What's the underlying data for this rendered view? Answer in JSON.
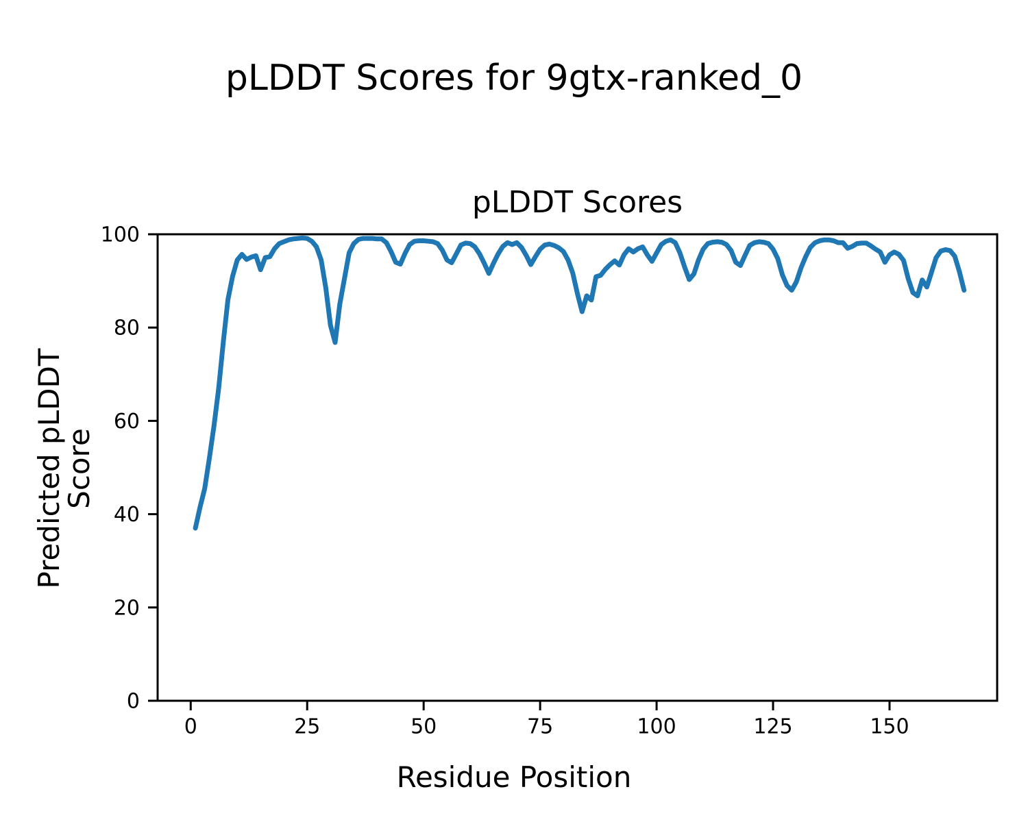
{
  "figure": {
    "title": "pLDDT Scores for 9gtx-ranked_0",
    "axes_title": "pLDDT Scores",
    "xlabel": "Residue Position",
    "ylabel": "Predicted pLDDT Score"
  },
  "colors": {
    "line": "#1f77b4",
    "axis": "#000000",
    "background": "#ffffff"
  },
  "chart_data": {
    "type": "line",
    "title": "pLDDT Scores",
    "suptitle": "pLDDT Scores for 9gtx-ranked_0",
    "xlabel": "Residue Position",
    "ylabel": "Predicted pLDDT Score",
    "xlim": [
      -7.1,
      173.1
    ],
    "ylim": [
      0,
      100
    ],
    "xticks": [
      0,
      25,
      50,
      75,
      100,
      125,
      150
    ],
    "yticks": [
      0,
      20,
      40,
      60,
      80,
      100
    ],
    "grid": false,
    "legend_position": "none",
    "series": [
      {
        "name": "pLDDT",
        "color": "#1f77b4",
        "x_start": 1,
        "x_step": 1,
        "values": [
          37.0,
          41.5,
          45.5,
          52.0,
          59.0,
          67.0,
          77.0,
          86.0,
          91.0,
          94.5,
          95.7,
          94.6,
          95.1,
          95.4,
          92.4,
          95.0,
          95.2,
          96.9,
          98.0,
          98.4,
          98.8,
          99.0,
          99.1,
          99.2,
          99.1,
          98.5,
          97.3,
          94.5,
          88.5,
          80.5,
          76.8,
          85.0,
          90.5,
          96.0,
          98.0,
          98.9,
          99.1,
          99.1,
          99.1,
          99.0,
          99.0,
          98.2,
          96.3,
          94.0,
          93.6,
          95.9,
          97.8,
          98.5,
          98.6,
          98.6,
          98.5,
          98.4,
          98.0,
          96.6,
          94.5,
          93.9,
          95.8,
          97.7,
          98.1,
          98.0,
          97.3,
          95.8,
          93.8,
          91.6,
          93.8,
          95.8,
          97.4,
          98.2,
          97.8,
          98.2,
          97.2,
          95.5,
          93.5,
          95.2,
          96.8,
          97.7,
          97.9,
          97.6,
          97.1,
          96.3,
          94.5,
          91.7,
          87.3,
          83.4,
          86.8,
          85.9,
          90.9,
          91.2,
          92.5,
          93.5,
          94.3,
          93.4,
          95.6,
          96.9,
          96.2,
          96.9,
          97.3,
          95.6,
          94.2,
          96.0,
          97.8,
          98.5,
          98.8,
          98.2,
          96.0,
          93.0,
          90.3,
          91.5,
          94.5,
          96.8,
          98.0,
          98.3,
          98.4,
          98.3,
          97.8,
          96.5,
          94.0,
          93.3,
          95.5,
          97.6,
          98.2,
          98.4,
          98.3,
          98.0,
          96.8,
          94.8,
          91.3,
          89.0,
          88.0,
          89.8,
          92.8,
          95.2,
          97.2,
          98.2,
          98.6,
          98.8,
          98.8,
          98.6,
          98.2,
          98.2,
          97.0,
          97.4,
          98.0,
          98.1,
          98.1,
          97.5,
          96.8,
          96.2,
          94.0,
          95.6,
          96.2,
          95.7,
          94.4,
          90.5,
          87.5,
          86.8,
          90.2,
          88.7,
          91.8,
          95.0,
          96.4,
          96.7,
          96.5,
          95.3,
          92.0,
          88.0
        ]
      }
    ]
  }
}
